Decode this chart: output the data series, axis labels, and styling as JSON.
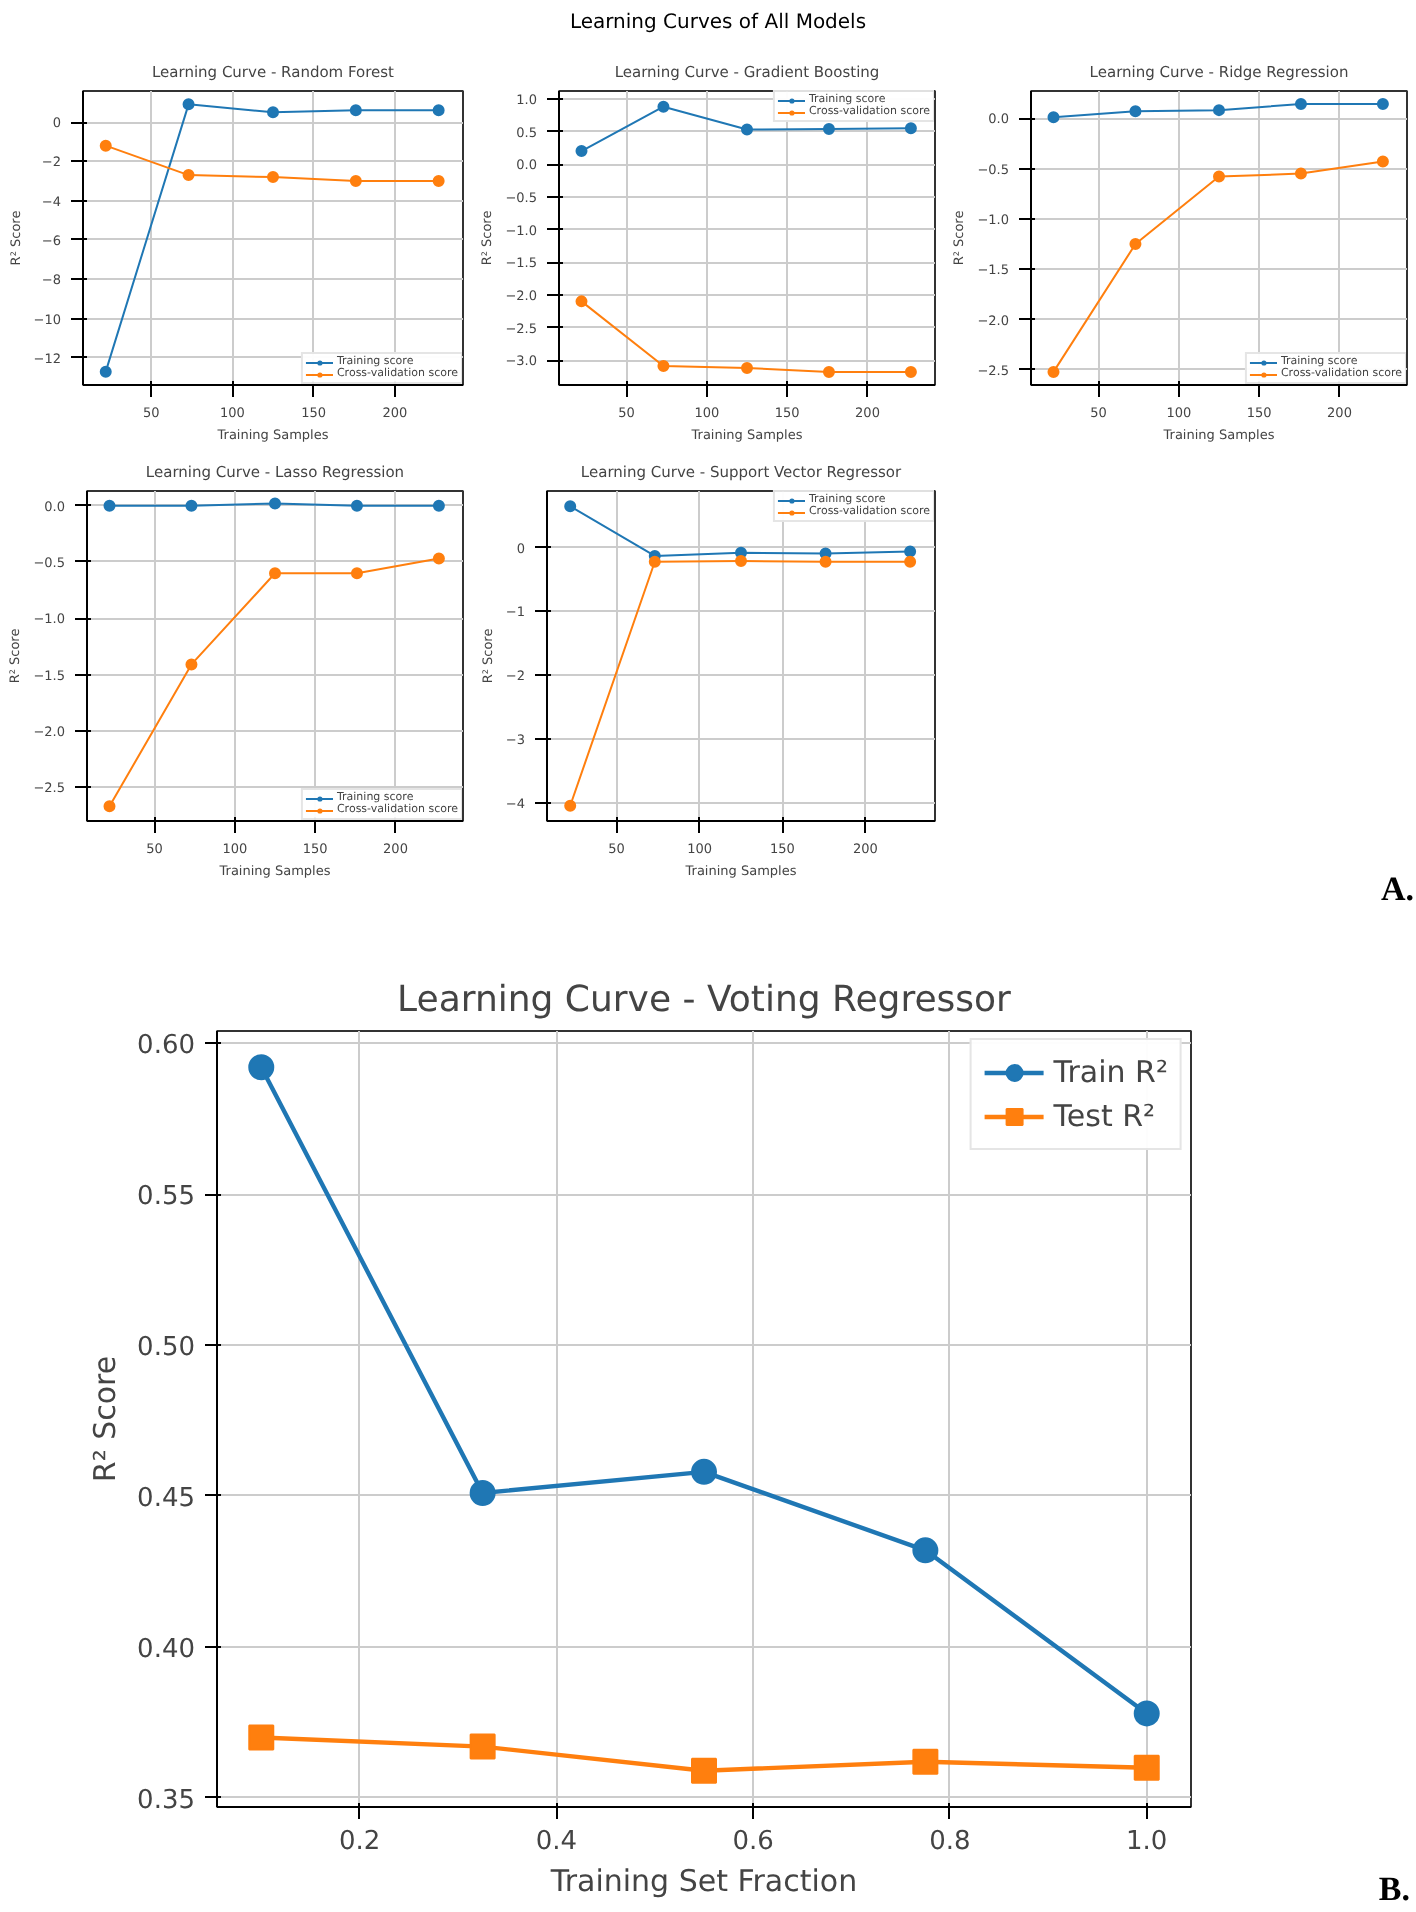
{
  "chart_data": [
    {
      "type": "other",
      "title": "Learning Curves of All Models"
    },
    {
      "type": "line",
      "title": "Learning Curve - Random Forest",
      "xlabel": "Training Samples",
      "ylabel": "R² Score",
      "x": [
        22,
        73,
        125,
        176,
        227
      ],
      "xlim": [
        8,
        242
      ],
      "xticks": [
        50,
        100,
        150,
        200
      ],
      "ylim": [
        -13.38,
        1.58
      ],
      "yticks": [
        -12,
        -10,
        -8,
        -6,
        -4,
        -2,
        0
      ],
      "grid": true,
      "legend": "bottom right",
      "marker": "circle",
      "series": [
        {
          "name": "Training score",
          "color": "#1f77b4",
          "values": [
            -12.7,
            0.9,
            0.5,
            0.6,
            0.6
          ]
        },
        {
          "name": "Cross-validation score",
          "color": "#ff7f0e",
          "values": [
            -1.2,
            -2.7,
            -2.8,
            -3.0,
            -3.0
          ]
        }
      ]
    },
    {
      "type": "line",
      "title": "Learning Curve - Gradient Boosting",
      "xlabel": "Training Samples",
      "ylabel": "R² Score",
      "x": [
        22,
        73,
        125,
        176,
        227
      ],
      "xlim": [
        8,
        242
      ],
      "xticks": [
        50,
        100,
        150,
        200
      ],
      "ylim": [
        -3.38,
        1.12
      ],
      "yticks": [
        {
          "value": -3.0,
          "label": "−3.0"
        },
        {
          "value": -2.5,
          "label": "−2.5"
        },
        {
          "value": -2.0,
          "label": "−2.0"
        },
        {
          "value": -1.5,
          "label": "−1.5"
        },
        {
          "value": -1.0,
          "label": "−1.0"
        },
        {
          "value": -0.5,
          "label": "−0.5"
        },
        {
          "value": 0.0,
          "label": "0.0"
        },
        {
          "value": 0.5,
          "label": "0.5"
        },
        {
          "value": 1.0,
          "label": "1.0"
        }
      ],
      "grid": true,
      "legend": "top right",
      "marker": "circle",
      "series": [
        {
          "name": "Training score",
          "color": "#1f77b4",
          "values": [
            0.2,
            0.88,
            0.53,
            0.54,
            0.55
          ]
        },
        {
          "name": "Cross-validation score",
          "color": "#ff7f0e",
          "values": [
            -2.1,
            -3.09,
            -3.12,
            -3.18,
            -3.18
          ]
        }
      ]
    },
    {
      "type": "line",
      "title": "Learning Curve - Ridge Regression",
      "xlabel": "Training Samples",
      "ylabel": "R² Score",
      "x": [
        22,
        73,
        125,
        176,
        227
      ],
      "xlim": [
        8,
        242
      ],
      "xticks": [
        50,
        100,
        150,
        200
      ],
      "ylim": [
        -2.65,
        0.27
      ],
      "yticks": [
        {
          "value": -2.5,
          "label": "−2.5"
        },
        {
          "value": -2.0,
          "label": "−2.0"
        },
        {
          "value": -1.5,
          "label": "−1.5"
        },
        {
          "value": -1.0,
          "label": "−1.0"
        },
        {
          "value": -0.5,
          "label": "−0.5"
        },
        {
          "value": 0.0,
          "label": "0.0"
        }
      ],
      "grid": true,
      "legend": "bottom right",
      "marker": "circle",
      "series": [
        {
          "name": "Training score",
          "color": "#1f77b4",
          "values": [
            0.01,
            0.07,
            0.08,
            0.14,
            0.14
          ]
        },
        {
          "name": "Cross-validation score",
          "color": "#ff7f0e",
          "values": [
            -2.52,
            -1.25,
            -0.58,
            -0.55,
            -0.43
          ]
        }
      ]
    },
    {
      "type": "line",
      "title": "Learning Curve - Lasso Regression",
      "xlabel": "Training Samples",
      "ylabel": "R² Score",
      "x": [
        22,
        73,
        125,
        176,
        227
      ],
      "xlim": [
        8,
        242
      ],
      "xticks": [
        50,
        100,
        150,
        200
      ],
      "ylim": [
        -2.8,
        0.13
      ],
      "yticks": [
        {
          "value": -2.5,
          "label": "−2.5"
        },
        {
          "value": -2.0,
          "label": "−2.0"
        },
        {
          "value": -1.5,
          "label": "−1.5"
        },
        {
          "value": -1.0,
          "label": "−1.0"
        },
        {
          "value": -0.5,
          "label": "−0.5"
        },
        {
          "value": 0.0,
          "label": "0.0"
        }
      ],
      "grid": true,
      "legend": "bottom right",
      "marker": "circle",
      "series": [
        {
          "name": "Training score",
          "color": "#1f77b4",
          "values": [
            0.0,
            0.0,
            0.02,
            0.0,
            0.0
          ]
        },
        {
          "name": "Cross-validation score",
          "color": "#ff7f0e",
          "values": [
            -2.67,
            -1.41,
            -0.6,
            -0.6,
            -0.47
          ]
        }
      ]
    },
    {
      "type": "line",
      "title": "Learning Curve - Support Vector Regressor",
      "xlabel": "Training Samples",
      "ylabel": "R² Score",
      "x": [
        22,
        73,
        125,
        176,
        227
      ],
      "xlim": [
        8,
        242
      ],
      "xticks": [
        50,
        100,
        150,
        200
      ],
      "ylim": [
        -4.29,
        0.89
      ],
      "yticks": [
        -4,
        -3,
        -2,
        -1,
        0
      ],
      "grid": true,
      "legend": "top right",
      "marker": "circle",
      "annotations": [
        "A."
      ],
      "series": [
        {
          "name": "Training score",
          "color": "#1f77b4",
          "values": [
            0.65,
            -0.13,
            -0.08,
            -0.09,
            -0.06
          ]
        },
        {
          "name": "Cross-validation score",
          "color": "#ff7f0e",
          "values": [
            -4.05,
            -0.22,
            -0.21,
            -0.22,
            -0.22
          ]
        }
      ]
    },
    {
      "type": "line",
      "title": "Learning Curve - Voting Regressor",
      "xlabel": "Training Set Fraction",
      "ylabel": "R² Score",
      "x": [
        0.1,
        0.325,
        0.55,
        0.775,
        1.0
      ],
      "xlim": [
        0.055,
        1.045
      ],
      "xticks": [
        0.2,
        0.4,
        0.6,
        0.8,
        {
          "value": 1.0,
          "label": "1.0"
        }
      ],
      "ylim": [
        0.347,
        0.604
      ],
      "yticks": [
        0.35,
        {
          "value": 0.4,
          "label": "0.40"
        },
        0.45,
        {
          "value": 0.5,
          "label": "0.50"
        },
        0.55,
        {
          "value": 0.6,
          "label": "0.60"
        }
      ],
      "grid": true,
      "legend": "top right",
      "annotations": [
        "B."
      ],
      "series": [
        {
          "name": "Train R²",
          "color": "#1f77b4",
          "marker": "circle",
          "values": [
            0.592,
            0.451,
            0.458,
            0.432,
            0.378
          ]
        },
        {
          "name": "Test R²",
          "color": "#ff7f0e",
          "marker": "square",
          "values": [
            0.37,
            0.367,
            0.359,
            0.362,
            0.36
          ]
        }
      ]
    }
  ]
}
